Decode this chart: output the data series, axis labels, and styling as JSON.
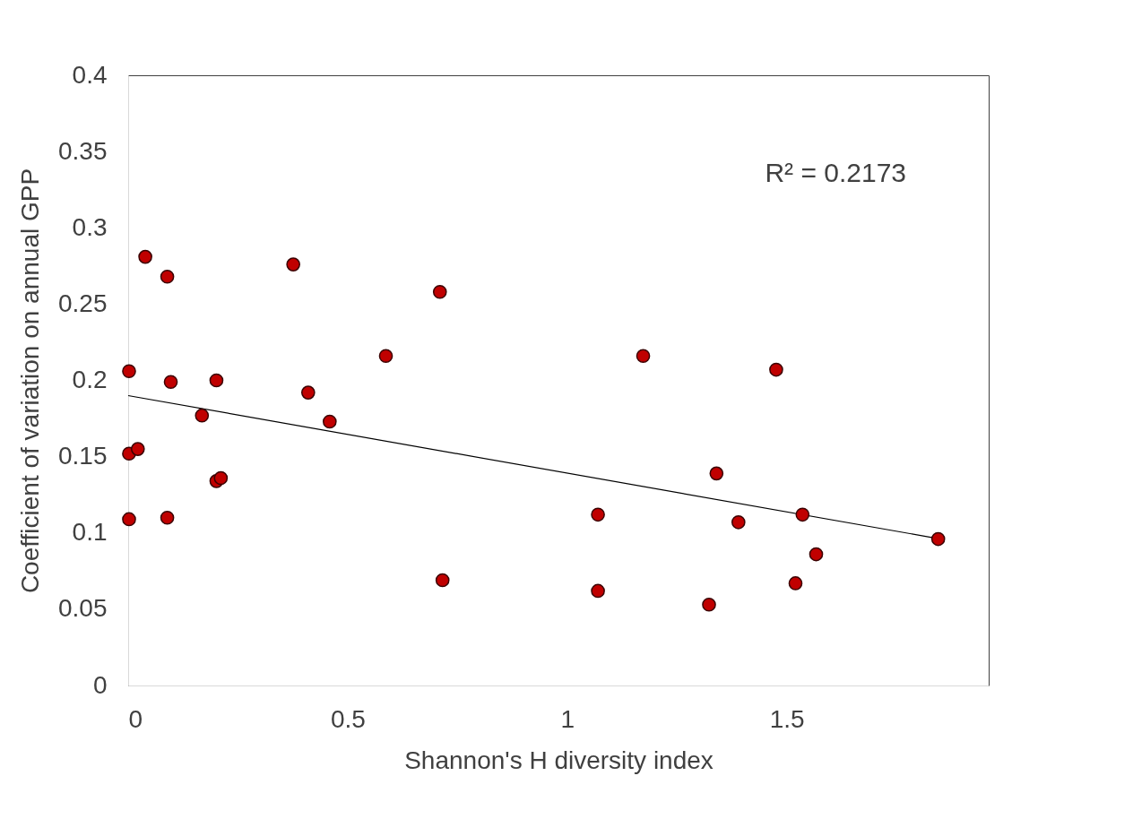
{
  "chart_data": {
    "type": "scatter",
    "xlabel": "Shannon's H diversity index",
    "ylabel": "Coefficient of variation on annual GPP",
    "xlim": [
      0,
      1.96
    ],
    "xticks": [
      0,
      0.5,
      1,
      1.5
    ],
    "ylim": [
      0,
      0.4
    ],
    "yticks": [
      0,
      0.05,
      0.1,
      0.15,
      0.2,
      0.25,
      0.3,
      0.35,
      0.4
    ],
    "annotations": [
      "R² = 0.2173"
    ],
    "series": [
      {
        "marker": "circle",
        "color": "#c00000",
        "x": [
          0.039,
          0.089,
          0.376,
          0.71,
          0.002,
          0.097,
          0.201,
          0.41,
          0.587,
          0.168,
          0.459,
          0.002,
          0.022,
          0.201,
          0.211,
          0.002,
          0.089,
          0.716,
          1.07,
          1.07,
          1.173,
          1.476,
          1.34,
          1.39,
          1.536,
          1.323,
          1.52,
          1.567,
          1.845
        ],
        "values": [
          0.281,
          0.268,
          0.276,
          0.258,
          0.206,
          0.199,
          0.2,
          0.192,
          0.216,
          0.177,
          0.173,
          0.152,
          0.155,
          0.134,
          0.136,
          0.109,
          0.11,
          0.069,
          0.112,
          0.062,
          0.216,
          0.207,
          0.139,
          0.107,
          0.112,
          0.053,
          0.067,
          0.086,
          0.096
        ]
      },
      {
        "type": "line",
        "color": "#000000",
        "x": [
          0,
          1.845
        ],
        "values": [
          0.19,
          0.0963
        ]
      }
    ]
  }
}
